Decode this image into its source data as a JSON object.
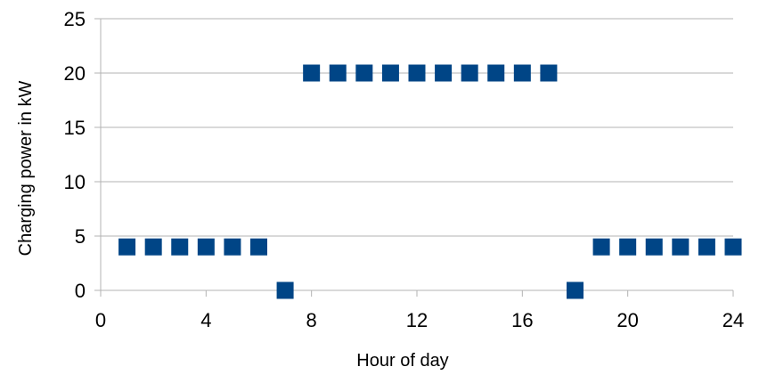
{
  "chart_data": {
    "type": "scatter",
    "xlabel": "Hour of day",
    "ylabel": "Charging power in kW",
    "xlim": [
      0,
      24
    ],
    "ylim": [
      0,
      25
    ],
    "xticks": [
      0,
      4,
      8,
      12,
      16,
      20,
      24
    ],
    "yticks": [
      0,
      5,
      10,
      15,
      20,
      25
    ],
    "grid": "horizontal",
    "marker": "square",
    "marker_color": "#004586",
    "points": [
      {
        "x": 1,
        "y": 4
      },
      {
        "x": 2,
        "y": 4
      },
      {
        "x": 3,
        "y": 4
      },
      {
        "x": 4,
        "y": 4
      },
      {
        "x": 5,
        "y": 4
      },
      {
        "x": 6,
        "y": 4
      },
      {
        "x": 7,
        "y": 0
      },
      {
        "x": 8,
        "y": 20
      },
      {
        "x": 9,
        "y": 20
      },
      {
        "x": 10,
        "y": 20
      },
      {
        "x": 11,
        "y": 20
      },
      {
        "x": 12,
        "y": 20
      },
      {
        "x": 13,
        "y": 20
      },
      {
        "x": 14,
        "y": 20
      },
      {
        "x": 15,
        "y": 20
      },
      {
        "x": 16,
        "y": 20
      },
      {
        "x": 17,
        "y": 20
      },
      {
        "x": 18,
        "y": 0
      },
      {
        "x": 19,
        "y": 4
      },
      {
        "x": 20,
        "y": 4
      },
      {
        "x": 21,
        "y": 4
      },
      {
        "x": 22,
        "y": 4
      },
      {
        "x": 23,
        "y": 4
      },
      {
        "x": 24,
        "y": 4
      }
    ]
  }
}
